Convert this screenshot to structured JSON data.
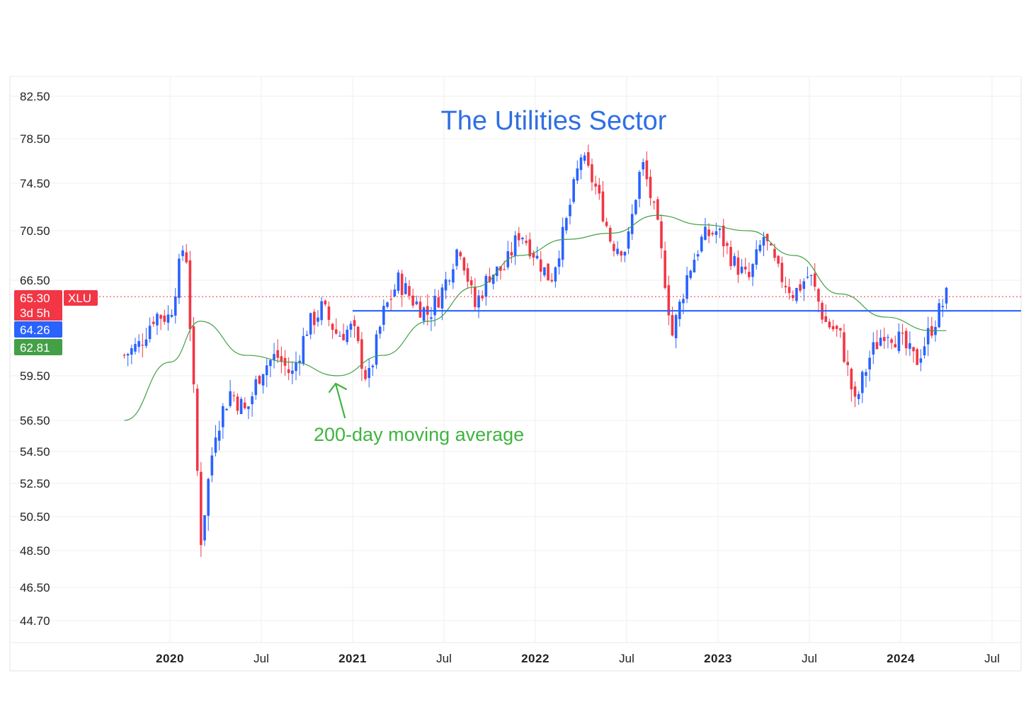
{
  "chart_data": {
    "type": "candlestick",
    "title": "The Utilities Sector",
    "symbol": "XLU",
    "timeframe": "3d 5h",
    "y_ticks": [
      82.5,
      78.5,
      74.5,
      70.5,
      66.5,
      59.5,
      56.5,
      54.5,
      52.5,
      50.5,
      48.5,
      46.5,
      44.7
    ],
    "x_ticks": [
      {
        "label": "2020",
        "year": true
      },
      {
        "label": "Jul",
        "year": false
      },
      {
        "label": "2021",
        "year": true
      },
      {
        "label": "Jul",
        "year": false
      },
      {
        "label": "2022",
        "year": true
      },
      {
        "label": "Jul",
        "year": false
      },
      {
        "label": "2023",
        "year": true
      },
      {
        "label": "Jul",
        "year": false
      },
      {
        "label": "2024",
        "year": true
      },
      {
        "label": "Jul",
        "year": false
      }
    ],
    "price_labels": {
      "last": {
        "value": "65.30",
        "color": "#f0424f"
      },
      "support": {
        "value": "64.26",
        "color": "#2962ff"
      },
      "ma": {
        "value": "62.81",
        "color": "#43a047"
      }
    },
    "support_level": 64.26,
    "annotation": "200-day moving average",
    "colors": {
      "up": "#2962ff",
      "down": "#f23645",
      "ma": "#43a047",
      "title": "#2f6fe4",
      "annotation": "#3fb43f"
    },
    "close_path": [
      {
        "x": "2019-10",
        "y": 61.0
      },
      {
        "x": "2019-11",
        "y": 61.8
      },
      {
        "x": "2019-12",
        "y": 64.0
      },
      {
        "x": "2020-01",
        "y": 63.8
      },
      {
        "x": "2020-02",
        "y": 70.0
      },
      {
        "x": "2020-03",
        "y": 49.0
      },
      {
        "x": "2020-04",
        "y": 56.0
      },
      {
        "x": "2020-05",
        "y": 58.5
      },
      {
        "x": "2020-06",
        "y": 57.0
      },
      {
        "x": "2020-07",
        "y": 60.0
      },
      {
        "x": "2020-08",
        "y": 61.0
      },
      {
        "x": "2020-09",
        "y": 59.5
      },
      {
        "x": "2020-10",
        "y": 63.0
      },
      {
        "x": "2020-11",
        "y": 64.5
      },
      {
        "x": "2020-12",
        "y": 62.5
      },
      {
        "x": "2021-01",
        "y": 63.0
      },
      {
        "x": "2021-02",
        "y": 59.0
      },
      {
        "x": "2021-03",
        "y": 64.0
      },
      {
        "x": "2021-04",
        "y": 66.5
      },
      {
        "x": "2021-05",
        "y": 65.0
      },
      {
        "x": "2021-06",
        "y": 64.0
      },
      {
        "x": "2021-07",
        "y": 66.0
      },
      {
        "x": "2021-08",
        "y": 69.5
      },
      {
        "x": "2021-09",
        "y": 64.5
      },
      {
        "x": "2021-10",
        "y": 67.0
      },
      {
        "x": "2021-11",
        "y": 67.5
      },
      {
        "x": "2021-12",
        "y": 70.5
      },
      {
        "x": "2022-01",
        "y": 68.5
      },
      {
        "x": "2022-02",
        "y": 66.5
      },
      {
        "x": "2022-03",
        "y": 71.0
      },
      {
        "x": "2022-04",
        "y": 77.0
      },
      {
        "x": "2022-05",
        "y": 74.0
      },
      {
        "x": "2022-06",
        "y": 69.5
      },
      {
        "x": "2022-07",
        "y": 69.0
      },
      {
        "x": "2022-08",
        "y": 76.5
      },
      {
        "x": "2022-09",
        "y": 71.0
      },
      {
        "x": "2022-10",
        "y": 62.5
      },
      {
        "x": "2022-11",
        "y": 67.0
      },
      {
        "x": "2022-12",
        "y": 70.0
      },
      {
        "x": "2023-01",
        "y": 70.5
      },
      {
        "x": "2023-02",
        "y": 68.0
      },
      {
        "x": "2023-03",
        "y": 66.5
      },
      {
        "x": "2023-04",
        "y": 70.0
      },
      {
        "x": "2023-05",
        "y": 67.0
      },
      {
        "x": "2023-06",
        "y": 65.5
      },
      {
        "x": "2023-07",
        "y": 67.0
      },
      {
        "x": "2023-08",
        "y": 63.5
      },
      {
        "x": "2023-09",
        "y": 62.5
      },
      {
        "x": "2023-10",
        "y": 57.5
      },
      {
        "x": "2023-11",
        "y": 61.0
      },
      {
        "x": "2023-12",
        "y": 63.0
      },
      {
        "x": "2024-01",
        "y": 62.0
      },
      {
        "x": "2024-02",
        "y": 60.5
      },
      {
        "x": "2024-03",
        "y": 63.0
      },
      {
        "x": "2024-04",
        "y": 65.3
      }
    ],
    "ma_path": [
      {
        "x": "2019-10",
        "y": 56.5
      },
      {
        "x": "2020-01",
        "y": 60.5
      },
      {
        "x": "2020-03",
        "y": 63.5
      },
      {
        "x": "2020-06",
        "y": 61.0
      },
      {
        "x": "2020-09",
        "y": 60.5
      },
      {
        "x": "2020-12",
        "y": 59.5
      },
      {
        "x": "2021-03",
        "y": 61.0
      },
      {
        "x": "2021-06",
        "y": 63.5
      },
      {
        "x": "2021-09",
        "y": 66.0
      },
      {
        "x": "2021-12",
        "y": 68.5
      },
      {
        "x": "2022-03",
        "y": 69.8
      },
      {
        "x": "2022-06",
        "y": 70.3
      },
      {
        "x": "2022-09",
        "y": 71.8
      },
      {
        "x": "2022-12",
        "y": 71.0
      },
      {
        "x": "2023-03",
        "y": 70.5
      },
      {
        "x": "2023-06",
        "y": 68.5
      },
      {
        "x": "2023-09",
        "y": 65.5
      },
      {
        "x": "2023-12",
        "y": 63.8
      },
      {
        "x": "2024-03",
        "y": 62.8
      },
      {
        "x": "2024-04",
        "y": 62.81
      }
    ]
  }
}
